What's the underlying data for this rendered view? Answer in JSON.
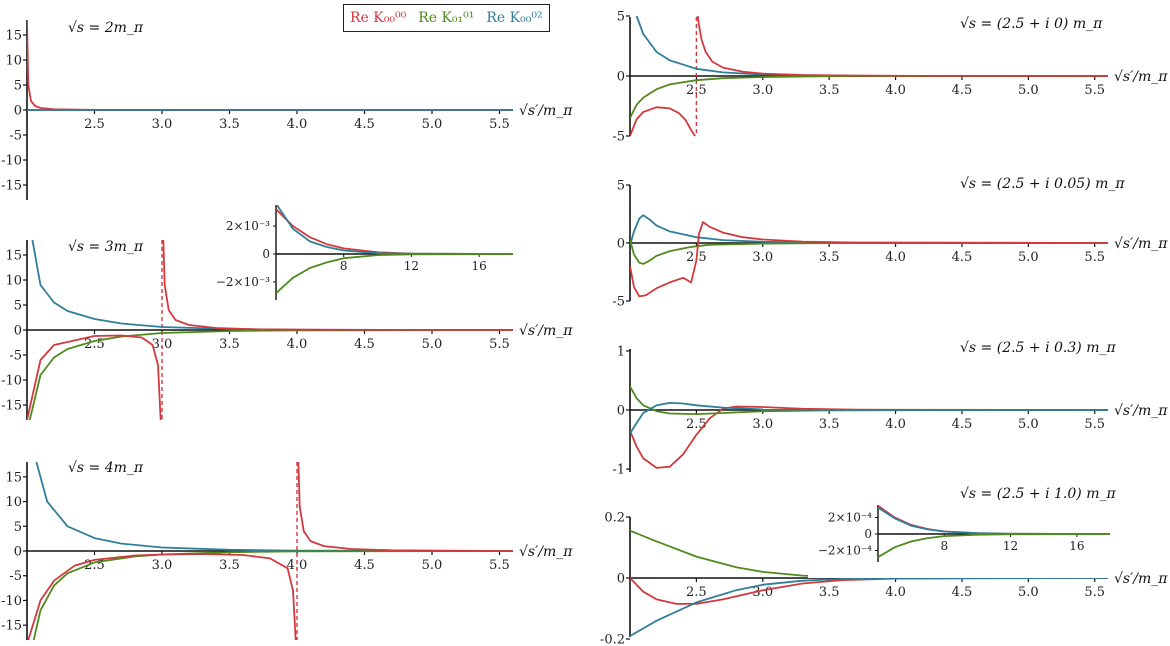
{
  "colors": {
    "red": "#d2393e",
    "green": "#4f8a1c",
    "blue": "#2f7e9a",
    "axis": "#111111"
  },
  "legend": [
    {
      "label": "Re K₀₀⁰⁰",
      "color": "#d2393e"
    },
    {
      "label": "Re K₀₁⁰¹",
      "color": "#4f8a1c"
    },
    {
      "label": "Re K₀₀⁰²",
      "color": "#2f7e9a"
    }
  ],
  "chart_data": [
    {
      "type": "line",
      "annotation": "√s = 2m_π",
      "xlabel": "√s′/m_π",
      "xlim": [
        2.0,
        5.6
      ],
      "ylim": [
        -18,
        18
      ],
      "xticks": [
        "2.5",
        "3.0",
        "3.5",
        "4.0",
        "4.5",
        "5.0",
        "5.5"
      ],
      "yticks": [
        "15",
        "10",
        "5",
        "0",
        "-5",
        "-10",
        "-15"
      ],
      "series": [
        {
          "color": "red",
          "x": [
            2.0,
            2.01,
            2.03,
            2.06,
            2.1,
            2.2,
            2.5,
            5.6
          ],
          "y": [
            18,
            5,
            1.8,
            0.8,
            0.4,
            0.15,
            0.02,
            0
          ]
        },
        {
          "color": "blue",
          "x": [
            2.0,
            5.6
          ],
          "y": [
            0,
            0
          ]
        }
      ]
    },
    {
      "type": "line",
      "annotation": "√s = 3m_π",
      "xlabel": "√s′/m_π",
      "xlim": [
        2.0,
        5.6
      ],
      "ylim": [
        -18,
        18
      ],
      "pole": 3.0,
      "xticks": [
        "2.5",
        "3.0",
        "3.5",
        "4.0",
        "4.5",
        "5.0",
        "5.5"
      ],
      "yticks": [
        "15",
        "10",
        "5",
        "0",
        "-5",
        "-10",
        "-15"
      ],
      "series": [
        {
          "color": "blue",
          "x": [
            2.04,
            2.1,
            2.2,
            2.3,
            2.5,
            2.7,
            3.0,
            3.5,
            4.0,
            5.6
          ],
          "y": [
            18,
            9,
            5.5,
            3.8,
            2.2,
            1.3,
            0.6,
            0.2,
            0.05,
            0
          ]
        },
        {
          "color": "green",
          "x": [
            2.02,
            2.1,
            2.2,
            2.3,
            2.5,
            2.7,
            3.0,
            3.5,
            4.0,
            5.6
          ],
          "y": [
            -18,
            -9,
            -5.5,
            -3.8,
            -2.2,
            -1.3,
            -0.6,
            -0.2,
            -0.05,
            0
          ]
        },
        {
          "color": "red",
          "x": [
            2.0,
            2.1,
            2.2,
            2.5,
            2.7,
            2.85,
            2.93,
            2.97,
            2.99
          ],
          "y": [
            -18,
            -6,
            -3,
            -1.2,
            -1.1,
            -1.5,
            -3,
            -7,
            -18
          ]
        },
        {
          "color": "red",
          "x": [
            3.01,
            3.02,
            3.05,
            3.1,
            3.2,
            3.4,
            3.7,
            4.2,
            5.6
          ],
          "y": [
            18,
            9,
            4,
            2,
            1,
            0.4,
            0.15,
            0.04,
            0
          ]
        }
      ],
      "inset": {
        "xlim": [
          4,
          18
        ],
        "ylim": [
          -0.0035,
          0.0035
        ],
        "xticks": [
          "8",
          "12",
          "16"
        ],
        "yticks": [
          "2×10⁻³",
          "0",
          "−2×10⁻³"
        ],
        "series": [
          {
            "color": "red",
            "x": [
              4,
              5,
              6,
              7,
              8,
              10,
              12,
              18
            ],
            "y": [
              0.0032,
              0.002,
              0.0012,
              0.0007,
              0.0004,
              0.00012,
              3e-05,
              0
            ]
          },
          {
            "color": "blue",
            "x": [
              4,
              5,
              6,
              7,
              8,
              10,
              12,
              18
            ],
            "y": [
              0.0036,
              0.0018,
              0.0009,
              0.0005,
              0.00025,
              6e-05,
              2e-05,
              0
            ]
          },
          {
            "color": "green",
            "x": [
              4,
              5,
              6,
              7,
              8,
              10,
              12,
              18
            ],
            "y": [
              -0.0028,
              -0.0017,
              -0.001,
              -0.0006,
              -0.0003,
              -8e-05,
              -2e-05,
              0
            ]
          }
        ]
      }
    },
    {
      "type": "line",
      "annotation": "√s = 4m_π",
      "xlabel": "√s′/m_π",
      "xlim": [
        2.0,
        5.6
      ],
      "ylim": [
        -18,
        18
      ],
      "pole": 4.0,
      "xticks": [
        "2.5",
        "3.0",
        "3.5",
        "4.0",
        "4.5",
        "5.0",
        "5.5"
      ],
      "yticks": [
        "15",
        "10",
        "5",
        "0",
        "-5",
        "-10",
        "-15"
      ],
      "series": [
        {
          "color": "blue",
          "x": [
            2.07,
            2.15,
            2.3,
            2.5,
            2.7,
            3.0,
            3.5,
            4.0,
            5.6
          ],
          "y": [
            18,
            10,
            5,
            2.6,
            1.5,
            0.7,
            0.25,
            0.08,
            0
          ]
        },
        {
          "color": "green",
          "x": [
            2.05,
            2.1,
            2.2,
            2.3,
            2.5,
            2.8,
            3.0,
            3.5,
            4.0,
            5.6
          ],
          "y": [
            -18,
            -12,
            -7,
            -4.5,
            -2.3,
            -1.1,
            -0.7,
            -0.25,
            -0.08,
            0
          ]
        },
        {
          "color": "red",
          "x": [
            2.01,
            2.1,
            2.2,
            2.35,
            2.5,
            2.8,
            3.0,
            3.3,
            3.6,
            3.8,
            3.93,
            3.97,
            3.99
          ],
          "y": [
            -18,
            -10,
            -6,
            -3,
            -1.8,
            -0.9,
            -0.7,
            -0.6,
            -0.8,
            -1.5,
            -3.5,
            -8,
            -18
          ]
        },
        {
          "color": "red",
          "x": [
            4.01,
            4.02,
            4.05,
            4.1,
            4.2,
            4.4,
            4.7,
            5.2,
            5.6
          ],
          "y": [
            18,
            9,
            4,
            2,
            1,
            0.4,
            0.15,
            0.04,
            0
          ]
        }
      ]
    },
    {
      "type": "line",
      "annotation": "√s = (2.5 + i 0) m_π",
      "xlabel": "√s′/m_π",
      "xlim": [
        2.0,
        5.6
      ],
      "ylim": [
        -5,
        5
      ],
      "pole": 2.5,
      "xticks": [
        "2.5",
        "3.0",
        "3.5",
        "4.0",
        "4.5",
        "5.0",
        "5.5"
      ],
      "yticks": [
        "5",
        "0",
        "-5"
      ],
      "series": [
        {
          "color": "blue",
          "x": [
            2.05,
            2.1,
            2.2,
            2.3,
            2.5,
            2.7,
            3.0,
            3.5,
            4.0,
            5.6
          ],
          "y": [
            5,
            3.5,
            2.0,
            1.3,
            0.6,
            0.3,
            0.12,
            0.03,
            0.01,
            0
          ]
        },
        {
          "color": "green",
          "x": [
            2.0,
            2.05,
            2.1,
            2.2,
            2.3,
            2.5,
            2.7,
            3.0,
            3.5,
            4.0,
            5.6
          ],
          "y": [
            -3.5,
            -2.4,
            -1.8,
            -1.1,
            -0.7,
            -0.35,
            -0.18,
            -0.08,
            -0.02,
            -0.01,
            0
          ]
        },
        {
          "color": "red",
          "x": [
            2.0,
            2.05,
            2.1,
            2.2,
            2.3,
            2.37,
            2.42,
            2.46,
            2.49
          ],
          "y": [
            -5,
            -3.6,
            -3.0,
            -2.6,
            -2.7,
            -3.1,
            -3.7,
            -4.5,
            -5
          ]
        },
        {
          "color": "red",
          "x": [
            2.51,
            2.52,
            2.54,
            2.57,
            2.62,
            2.7,
            2.85,
            3.0,
            3.3,
            3.7,
            4.2,
            5.6
          ],
          "y": [
            5,
            4.2,
            3.0,
            2.0,
            1.2,
            0.7,
            0.35,
            0.2,
            0.08,
            0.03,
            0.01,
            0
          ]
        }
      ]
    },
    {
      "type": "line",
      "annotation": "√s = (2.5 + i 0.05) m_π",
      "xlabel": "√s′/m_π",
      "xlim": [
        2.0,
        5.6
      ],
      "ylim": [
        -5,
        5
      ],
      "xticks": [
        "2.5",
        "3.0",
        "3.5",
        "4.0",
        "4.5",
        "5.0",
        "5.5"
      ],
      "yticks": [
        "5",
        "0",
        "-5"
      ],
      "series": [
        {
          "color": "blue",
          "x": [
            2.0,
            2.03,
            2.07,
            2.1,
            2.15,
            2.2,
            2.3,
            2.5,
            2.7,
            3.0,
            3.5,
            5.6
          ],
          "y": [
            -0.2,
            1.0,
            2.1,
            2.4,
            2.0,
            1.5,
            1.0,
            0.5,
            0.25,
            0.1,
            0.02,
            0
          ]
        },
        {
          "color": "green",
          "x": [
            2.0,
            2.03,
            2.07,
            2.1,
            2.15,
            2.2,
            2.3,
            2.45,
            2.6,
            3.0,
            3.5,
            5.6
          ],
          "y": [
            0.3,
            -1.0,
            -1.7,
            -1.8,
            -1.5,
            -1.1,
            -0.7,
            -0.35,
            -0.15,
            -0.05,
            -0.01,
            0
          ]
        },
        {
          "color": "red",
          "x": [
            2.0,
            2.03,
            2.07,
            2.12,
            2.2,
            2.3,
            2.4,
            2.46,
            2.5,
            2.52,
            2.55,
            2.6,
            2.7,
            2.85,
            3.0,
            3.3,
            3.7,
            5.6
          ],
          "y": [
            -2.0,
            -3.8,
            -4.6,
            -4.5,
            -3.9,
            -3.4,
            -3.0,
            -3.4,
            -1.5,
            0.8,
            1.8,
            1.4,
            0.9,
            0.5,
            0.3,
            0.12,
            0.04,
            0
          ]
        }
      ]
    },
    {
      "type": "line",
      "annotation": "√s = (2.5 + i 0.3) m_π",
      "xlabel": "√s′/m_π",
      "xlim": [
        2.0,
        5.6
      ],
      "ylim": [
        -1.05,
        1.05
      ],
      "xticks": [
        "2.5",
        "3.0",
        "3.5",
        "4.0",
        "4.5",
        "5.0",
        "5.5"
      ],
      "yticks": [
        "1",
        "0",
        "-1"
      ],
      "series": [
        {
          "color": "red",
          "x": [
            2.0,
            2.05,
            2.1,
            2.2,
            2.3,
            2.4,
            2.5,
            2.6,
            2.7,
            2.8,
            3.0,
            3.3,
            3.7,
            5.6
          ],
          "y": [
            -0.35,
            -0.62,
            -0.82,
            -0.98,
            -0.96,
            -0.75,
            -0.42,
            -0.14,
            0.02,
            0.06,
            0.05,
            0.02,
            0.005,
            0
          ]
        },
        {
          "color": "green",
          "x": [
            2.0,
            2.05,
            2.1,
            2.2,
            2.3,
            2.5,
            2.7,
            3.0,
            3.5,
            5.6
          ],
          "y": [
            0.4,
            0.2,
            0.08,
            -0.02,
            -0.06,
            -0.07,
            -0.05,
            -0.02,
            -0.005,
            0
          ]
        },
        {
          "color": "blue",
          "x": [
            2.0,
            2.05,
            2.1,
            2.2,
            2.3,
            2.4,
            2.5,
            2.7,
            3.0,
            3.5,
            5.6
          ],
          "y": [
            -0.4,
            -0.22,
            -0.05,
            0.08,
            0.12,
            0.11,
            0.08,
            0.04,
            0.01,
            0.002,
            0
          ]
        }
      ]
    },
    {
      "type": "line",
      "annotation": "√s = (2.5 + i 1.0) m_π",
      "xlabel": "√s′/m_π",
      "xlim": [
        2.0,
        5.6
      ],
      "ylim": [
        -0.2,
        0.2
      ],
      "xticks": [
        "2.5",
        "3.0",
        "3.5",
        "4.0",
        "4.5",
        "5.0",
        "5.5"
      ],
      "yticks": [
        "0.2",
        "0",
        "-0.2"
      ],
      "series": [
        {
          "color": "green",
          "x": [
            2.0,
            2.2,
            2.5,
            2.8,
            3.0,
            3.3,
            3.6,
            4.0,
            4.5,
            5.6
          ],
          "y": [
            0.155,
            0.12,
            0.07,
            0.035,
            0.02,
            0.008,
            0.003,
            0.001,
            0.0003,
            0
          ]
        },
        {
          "color": "red",
          "x": [
            2.0,
            2.1,
            2.2,
            2.35,
            2.5,
            2.7,
            3.0,
            3.3,
            3.6,
            4.0,
            5.6
          ],
          "y": [
            0,
            -0.045,
            -0.07,
            -0.085,
            -0.085,
            -0.07,
            -0.04,
            -0.018,
            -0.007,
            -0.002,
            0
          ]
        },
        {
          "color": "blue",
          "x": [
            2.0,
            2.2,
            2.5,
            2.8,
            3.0,
            3.3,
            3.6,
            4.0,
            4.5,
            5.6
          ],
          "y": [
            -0.19,
            -0.14,
            -0.08,
            -0.04,
            -0.022,
            -0.009,
            -0.003,
            -0.001,
            -0.0003,
            0
          ]
        }
      ],
      "inset": {
        "xlim": [
          4,
          18
        ],
        "ylim": [
          -0.00035,
          0.00035
        ],
        "xticks": [
          "8",
          "12",
          "16"
        ],
        "yticks": [
          "2×10⁻⁴",
          "0",
          "−2×10⁻⁴"
        ],
        "series": [
          {
            "color": "red",
            "x": [
              4,
              5,
              6,
              7,
              8,
              10,
              12,
              18
            ],
            "y": [
              0.00034,
              0.0002,
              0.00011,
              6e-05,
              3e-05,
              1e-05,
              3e-06,
              0
            ]
          },
          {
            "color": "blue",
            "x": [
              4,
              5,
              6,
              7,
              8,
              10,
              12,
              18
            ],
            "y": [
              0.00032,
              0.00019,
              0.0001,
              5.5e-05,
              3e-05,
              1e-05,
              3e-06,
              0
            ]
          },
          {
            "color": "green",
            "x": [
              4,
              5,
              6,
              7,
              8,
              10,
              12,
              18
            ],
            "y": [
              -0.00028,
              -0.00016,
              -9e-05,
              -5e-05,
              -2.5e-05,
              -8e-06,
              -2e-06,
              0
            ]
          }
        ]
      }
    }
  ]
}
